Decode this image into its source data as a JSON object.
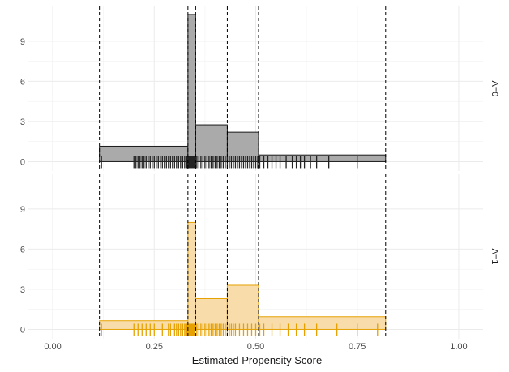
{
  "chart_data": {
    "type": "histogram",
    "xlabel": "Estimated Propensity Score",
    "xlim": [
      -0.06,
      1.06
    ],
    "ylim": [
      -0.7,
      11.6
    ],
    "x_ticks": [
      0.0,
      0.25,
      0.5,
      0.75,
      1.0
    ],
    "x_tick_labels": [
      "0.00",
      "0.25",
      "0.50",
      "0.75",
      "1.00"
    ],
    "y_ticks": [
      0,
      3,
      6,
      9
    ],
    "y_tick_labels": [
      "0",
      "3",
      "6",
      "9"
    ],
    "bin_breaks": [
      0.115,
      0.333,
      0.352,
      0.43,
      0.507,
      0.82
    ],
    "grid": true,
    "legend": "none",
    "panels": [
      {
        "label": "A=0",
        "fill": "#aaaaaa",
        "outline": "#1a1a1a",
        "rug_color": "#222222",
        "densities": [
          1.15,
          11.0,
          2.75,
          2.2,
          0.5
        ],
        "rug": [
          0.12,
          0.2,
          0.205,
          0.21,
          0.215,
          0.22,
          0.225,
          0.23,
          0.235,
          0.24,
          0.245,
          0.25,
          0.255,
          0.26,
          0.265,
          0.27,
          0.275,
          0.28,
          0.285,
          0.29,
          0.295,
          0.3,
          0.305,
          0.31,
          0.315,
          0.32,
          0.325,
          0.33,
          0.332,
          0.334,
          0.336,
          0.338,
          0.34,
          0.342,
          0.344,
          0.346,
          0.348,
          0.35,
          0.352,
          0.355,
          0.36,
          0.365,
          0.37,
          0.375,
          0.38,
          0.385,
          0.39,
          0.395,
          0.4,
          0.405,
          0.41,
          0.415,
          0.42,
          0.425,
          0.43,
          0.435,
          0.44,
          0.445,
          0.45,
          0.455,
          0.46,
          0.465,
          0.47,
          0.475,
          0.48,
          0.485,
          0.49,
          0.495,
          0.5,
          0.505,
          0.51,
          0.52,
          0.53,
          0.54,
          0.55,
          0.56,
          0.575,
          0.59,
          0.6,
          0.61,
          0.62,
          0.635,
          0.65,
          0.68,
          0.75
        ]
      },
      {
        "label": "A=1",
        "fill": "#f8ddaa",
        "outline": "#e6a100",
        "rug_color": "#e6a100",
        "densities": [
          0.65,
          8.0,
          2.3,
          3.3,
          0.95
        ],
        "rug": [
          0.12,
          0.2,
          0.21,
          0.22,
          0.23,
          0.24,
          0.25,
          0.27,
          0.285,
          0.29,
          0.3,
          0.305,
          0.31,
          0.315,
          0.32,
          0.325,
          0.328,
          0.33,
          0.332,
          0.334,
          0.336,
          0.338,
          0.34,
          0.342,
          0.344,
          0.346,
          0.348,
          0.35,
          0.355,
          0.36,
          0.365,
          0.37,
          0.375,
          0.38,
          0.385,
          0.39,
          0.395,
          0.4,
          0.405,
          0.41,
          0.415,
          0.42,
          0.425,
          0.43,
          0.435,
          0.44,
          0.445,
          0.45,
          0.46,
          0.47,
          0.48,
          0.49,
          0.5,
          0.51,
          0.52,
          0.54,
          0.56,
          0.58,
          0.6,
          0.62,
          0.65,
          0.7,
          0.75,
          0.8
        ]
      }
    ]
  }
}
